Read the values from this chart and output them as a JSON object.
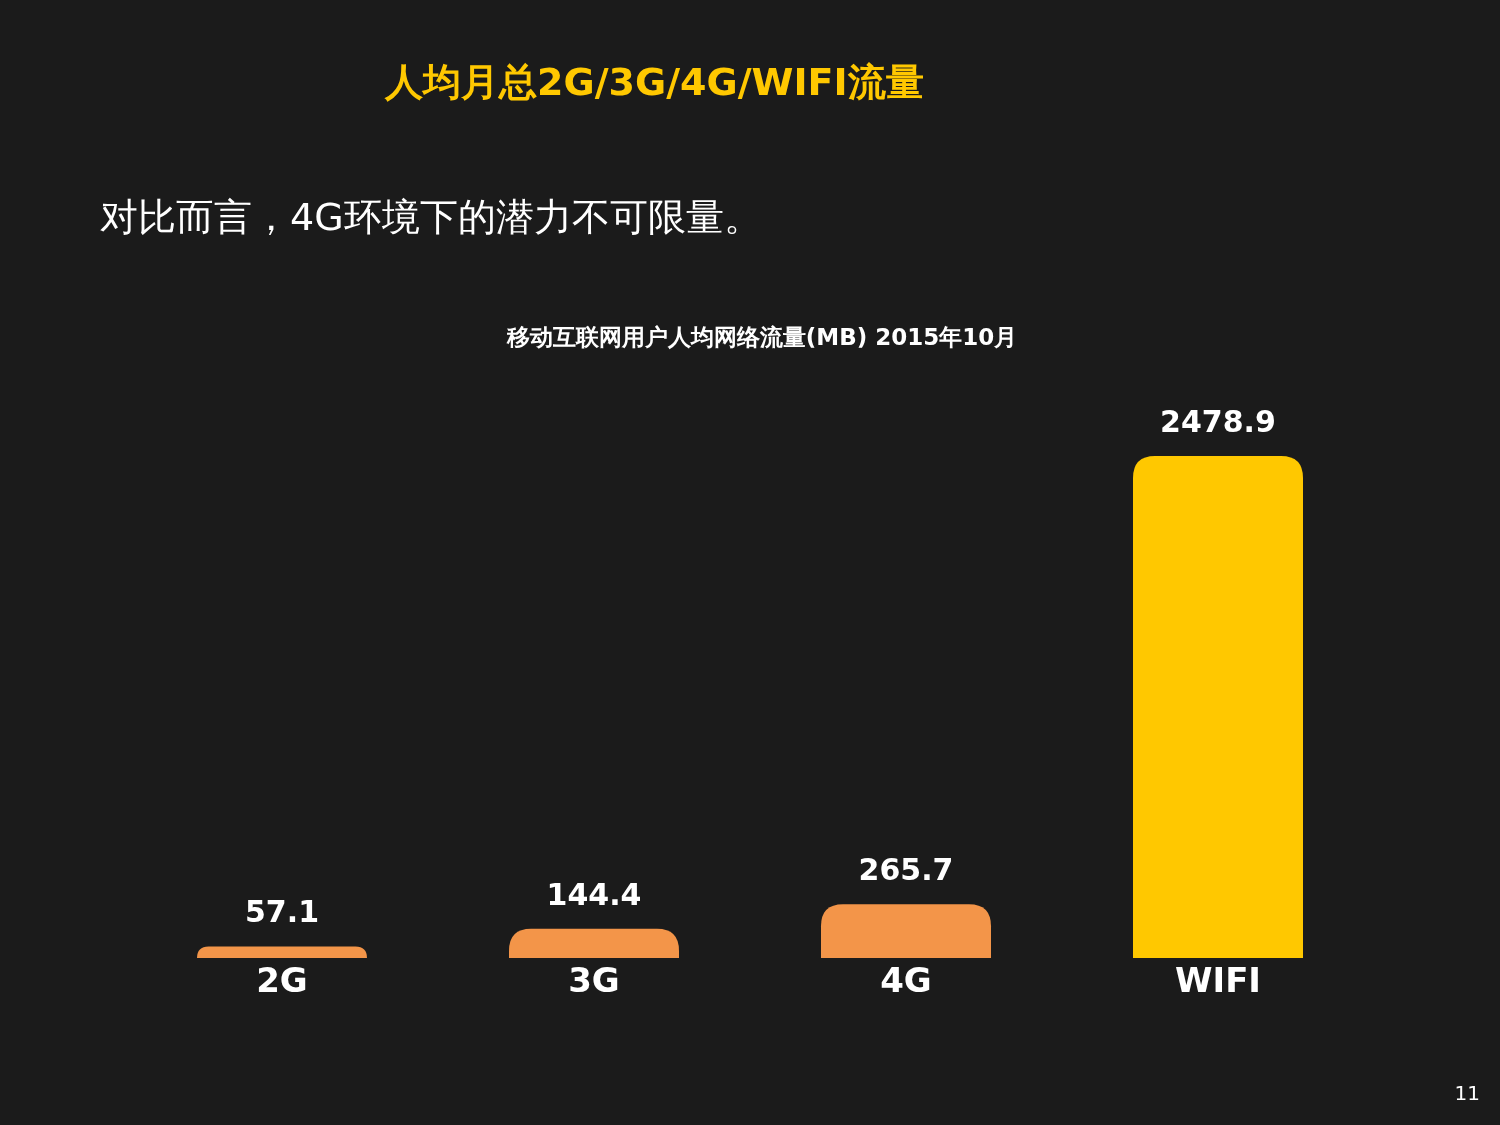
{
  "chart_data": {
    "type": "bar",
    "title": "人均月总2G/3G/4G/WIFI流量",
    "subtitle": "对比而言，4G环境下的潜力不可限量。",
    "annotations": [
      "移动互联网用户人均网络流量(MB) 2015年10月",
      "11"
    ],
    "categories": [
      "2G",
      "3G",
      "4G",
      "WIFI"
    ],
    "values": [
      57.1,
      144.4,
      265.7,
      2478.9
    ],
    "colors": [
      "#f39549",
      "#f39549",
      "#f39549",
      "#ffc800"
    ],
    "data_labels": true
  }
}
